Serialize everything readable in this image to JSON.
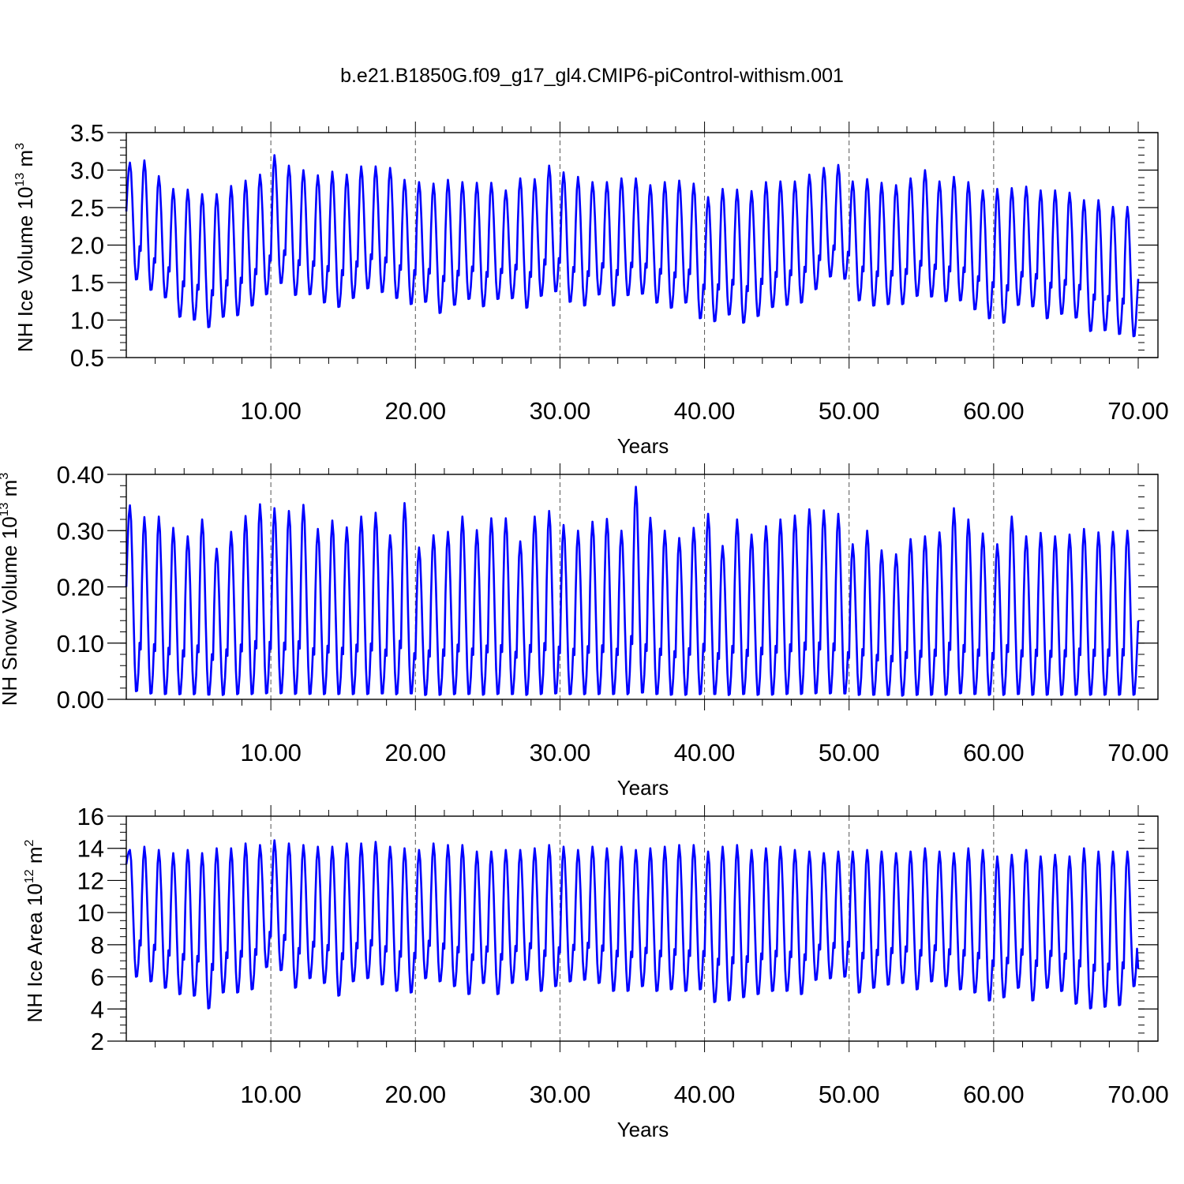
{
  "title": "b.e21.B1850G.f09_g17_gl4.CMIP6-piControl-withism.001",
  "colors": {
    "line": "#0000ff",
    "axes": "#000000",
    "grid": "#000000",
    "background": "#ffffff"
  },
  "chart_data": [
    {
      "type": "line",
      "title": "",
      "xlabel": "Years",
      "ylabel": {
        "text": "NH Ice Volume 10",
        "exponent": "13",
        "unit": " m",
        "unit_exponent": "3"
      },
      "xlim": [
        0,
        70
      ],
      "ylim": [
        0.5,
        3.5
      ],
      "x_ticks": [
        10,
        20,
        30,
        40,
        50,
        60,
        70
      ],
      "x_tick_labels": [
        "10.00",
        "20.00",
        "30.00",
        "40.00",
        "50.00",
        "60.00",
        "70.00"
      ],
      "y_ticks": [
        0.5,
        1.0,
        1.5,
        2.0,
        2.5,
        3.0,
        3.5
      ],
      "y_tick_labels": [
        "0.5",
        "1.0",
        "1.5",
        "2.0",
        "2.5",
        "3.0",
        "3.5"
      ],
      "y_minor_step": 0.1,
      "vertical_grid": "dashed at major x ticks",
      "sampling": "monthly",
      "start_value": 2.45,
      "end_value": 1.55,
      "annual_max": [
        3.1,
        3.13,
        2.92,
        2.75,
        2.74,
        2.68,
        2.68,
        2.79,
        2.86,
        2.94,
        3.2,
        3.06,
        3.0,
        2.93,
        2.98,
        2.94,
        3.05,
        3.05,
        3.03,
        2.87,
        2.84,
        2.82,
        2.87,
        2.84,
        2.83,
        2.83,
        2.73,
        2.89,
        2.88,
        3.06,
        2.97,
        2.91,
        2.84,
        2.84,
        2.89,
        2.89,
        2.8,
        2.84,
        2.86,
        2.82,
        2.64,
        2.75,
        2.74,
        2.72,
        2.84,
        2.85,
        2.85,
        2.94,
        3.03,
        3.07,
        2.85,
        2.88,
        2.83,
        2.8,
        2.89,
        3.0,
        2.85,
        2.91,
        2.84,
        2.73,
        2.75,
        2.76,
        2.78,
        2.73,
        2.73,
        2.7,
        2.6,
        2.6,
        2.51,
        2.51
      ],
      "annual_min": [
        1.52,
        1.38,
        1.28,
        1.02,
        0.98,
        0.88,
        1.02,
        1.04,
        1.17,
        1.32,
        1.47,
        1.31,
        1.32,
        1.21,
        1.15,
        1.27,
        1.4,
        1.35,
        1.27,
        1.19,
        1.22,
        1.07,
        1.18,
        1.26,
        1.16,
        1.26,
        1.27,
        1.14,
        1.3,
        1.36,
        1.22,
        1.17,
        1.32,
        1.17,
        1.31,
        1.33,
        1.21,
        1.14,
        1.21,
        1.0,
        0.96,
        1.05,
        0.94,
        1.03,
        1.15,
        1.18,
        1.21,
        1.39,
        1.56,
        1.53,
        1.24,
        1.17,
        1.19,
        1.19,
        1.3,
        1.29,
        1.23,
        1.24,
        1.12,
        1.0,
        0.94,
        1.18,
        1.16,
        1.0,
        1.06,
        1.01,
        0.83,
        0.84,
        0.79,
        0.76
      ]
    },
    {
      "type": "line",
      "title": "",
      "xlabel": "Years",
      "ylabel": {
        "text": "NH Snow Volume 10",
        "exponent": "13",
        "unit": " m",
        "unit_exponent": "3"
      },
      "xlim": [
        0,
        70
      ],
      "ylim": [
        0.0,
        0.4
      ],
      "x_ticks": [
        10,
        20,
        30,
        40,
        50,
        60,
        70
      ],
      "x_tick_labels": [
        "10.00",
        "20.00",
        "30.00",
        "40.00",
        "50.00",
        "60.00",
        "70.00"
      ],
      "y_ticks": [
        0.0,
        0.1,
        0.2,
        0.3,
        0.4
      ],
      "y_tick_labels": [
        "0.00",
        "0.10",
        "0.20",
        "0.30",
        "0.40"
      ],
      "y_minor_step": 0.02,
      "vertical_grid": "dashed at major x ticks",
      "sampling": "monthly",
      "start_value": 0.2,
      "end_value": 0.14,
      "annual_max": [
        0.345,
        0.324,
        0.325,
        0.305,
        0.29,
        0.32,
        0.268,
        0.298,
        0.326,
        0.347,
        0.34,
        0.335,
        0.346,
        0.303,
        0.318,
        0.306,
        0.325,
        0.332,
        0.292,
        0.349,
        0.27,
        0.292,
        0.298,
        0.325,
        0.301,
        0.322,
        0.322,
        0.281,
        0.325,
        0.335,
        0.31,
        0.3,
        0.316,
        0.321,
        0.3,
        0.378,
        0.323,
        0.3,
        0.287,
        0.305,
        0.33,
        0.273,
        0.32,
        0.293,
        0.308,
        0.32,
        0.327,
        0.338,
        0.336,
        0.33,
        0.276,
        0.3,
        0.265,
        0.258,
        0.285,
        0.29,
        0.297,
        0.34,
        0.32,
        0.295,
        0.276,
        0.325,
        0.29,
        0.296,
        0.29,
        0.293,
        0.303,
        0.297,
        0.298,
        0.3
      ],
      "annual_min": [
        0.01,
        0.006,
        0.005,
        0.005,
        0.005,
        0.004,
        0.004,
        0.005,
        0.005,
        0.006,
        0.006,
        0.005,
        0.005,
        0.005,
        0.005,
        0.005,
        0.005,
        0.006,
        0.005,
        0.006,
        0.004,
        0.004,
        0.005,
        0.005,
        0.004,
        0.005,
        0.005,
        0.004,
        0.005,
        0.006,
        0.005,
        0.005,
        0.005,
        0.005,
        0.005,
        0.007,
        0.005,
        0.004,
        0.004,
        0.005,
        0.005,
        0.004,
        0.005,
        0.004,
        0.004,
        0.005,
        0.005,
        0.006,
        0.006,
        0.006,
        0.004,
        0.004,
        0.004,
        0.003,
        0.004,
        0.004,
        0.004,
        0.006,
        0.005,
        0.004,
        0.004,
        0.005,
        0.004,
        0.004,
        0.004,
        0.004,
        0.004,
        0.004,
        0.004,
        0.004
      ]
    },
    {
      "type": "line",
      "title": "",
      "xlabel": "Years",
      "ylabel": {
        "text": "NH Ice Area 10",
        "exponent": "12",
        "unit": " m",
        "unit_exponent": "2"
      },
      "xlim": [
        0,
        70
      ],
      "ylim": [
        2,
        16
      ],
      "x_ticks": [
        10,
        20,
        30,
        40,
        50,
        60,
        70
      ],
      "x_tick_labels": [
        "10.00",
        "20.00",
        "30.00",
        "40.00",
        "50.00",
        "60.00",
        "70.00"
      ],
      "y_ticks": [
        2,
        4,
        6,
        8,
        10,
        12,
        14,
        16
      ],
      "y_tick_labels": [
        "2",
        "4",
        "6",
        "8",
        "10",
        "12",
        "14",
        "16"
      ],
      "y_minor_step": 0.5,
      "vertical_grid": "dashed at major x ticks",
      "sampling": "monthly",
      "start_value": 13.0,
      "end_value": 6.5,
      "annual_max": [
        13.9,
        14.1,
        13.9,
        13.7,
        13.9,
        13.7,
        14.0,
        14.0,
        14.3,
        14.2,
        14.5,
        14.3,
        14.2,
        14.1,
        14.1,
        14.3,
        14.3,
        14.4,
        14.1,
        14.0,
        13.9,
        14.3,
        14.2,
        14.2,
        13.8,
        13.8,
        13.9,
        13.9,
        14.0,
        14.2,
        14.1,
        13.9,
        14.1,
        14.0,
        14.1,
        13.9,
        14.0,
        14.1,
        14.2,
        14.2,
        13.8,
        14.1,
        14.2,
        13.9,
        14.0,
        14.1,
        13.9,
        13.8,
        13.7,
        13.8,
        13.8,
        13.9,
        13.8,
        13.7,
        13.8,
        14.0,
        13.8,
        13.7,
        14.0,
        13.9,
        13.5,
        13.6,
        13.9,
        13.5,
        13.6,
        13.5,
        14.0,
        13.8,
        13.8,
        13.8
      ],
      "annual_min": [
        5.9,
        5.6,
        5.2,
        4.8,
        4.7,
        3.9,
        4.9,
        4.9,
        5.1,
        6.5,
        6.3,
        5.2,
        5.8,
        5.5,
        4.7,
        5.6,
        5.8,
        5.4,
        5.0,
        4.9,
        5.8,
        5.6,
        5.3,
        4.8,
        5.5,
        4.8,
        5.5,
        5.7,
        5.0,
        5.3,
        5.6,
        5.7,
        5.5,
        5.0,
        5.0,
        5.3,
        5.0,
        5.1,
        5.0,
        5.1,
        4.3,
        4.4,
        4.6,
        4.8,
        5.0,
        5.0,
        4.8,
        5.7,
        5.8,
        5.9,
        4.9,
        5.2,
        5.4,
        5.5,
        5.1,
        5.6,
        5.3,
        5.1,
        4.9,
        4.4,
        4.6,
        5.2,
        4.4,
        5.2,
        5.0,
        4.2,
        3.9,
        4.0,
        4.1,
        5.3
      ]
    }
  ]
}
